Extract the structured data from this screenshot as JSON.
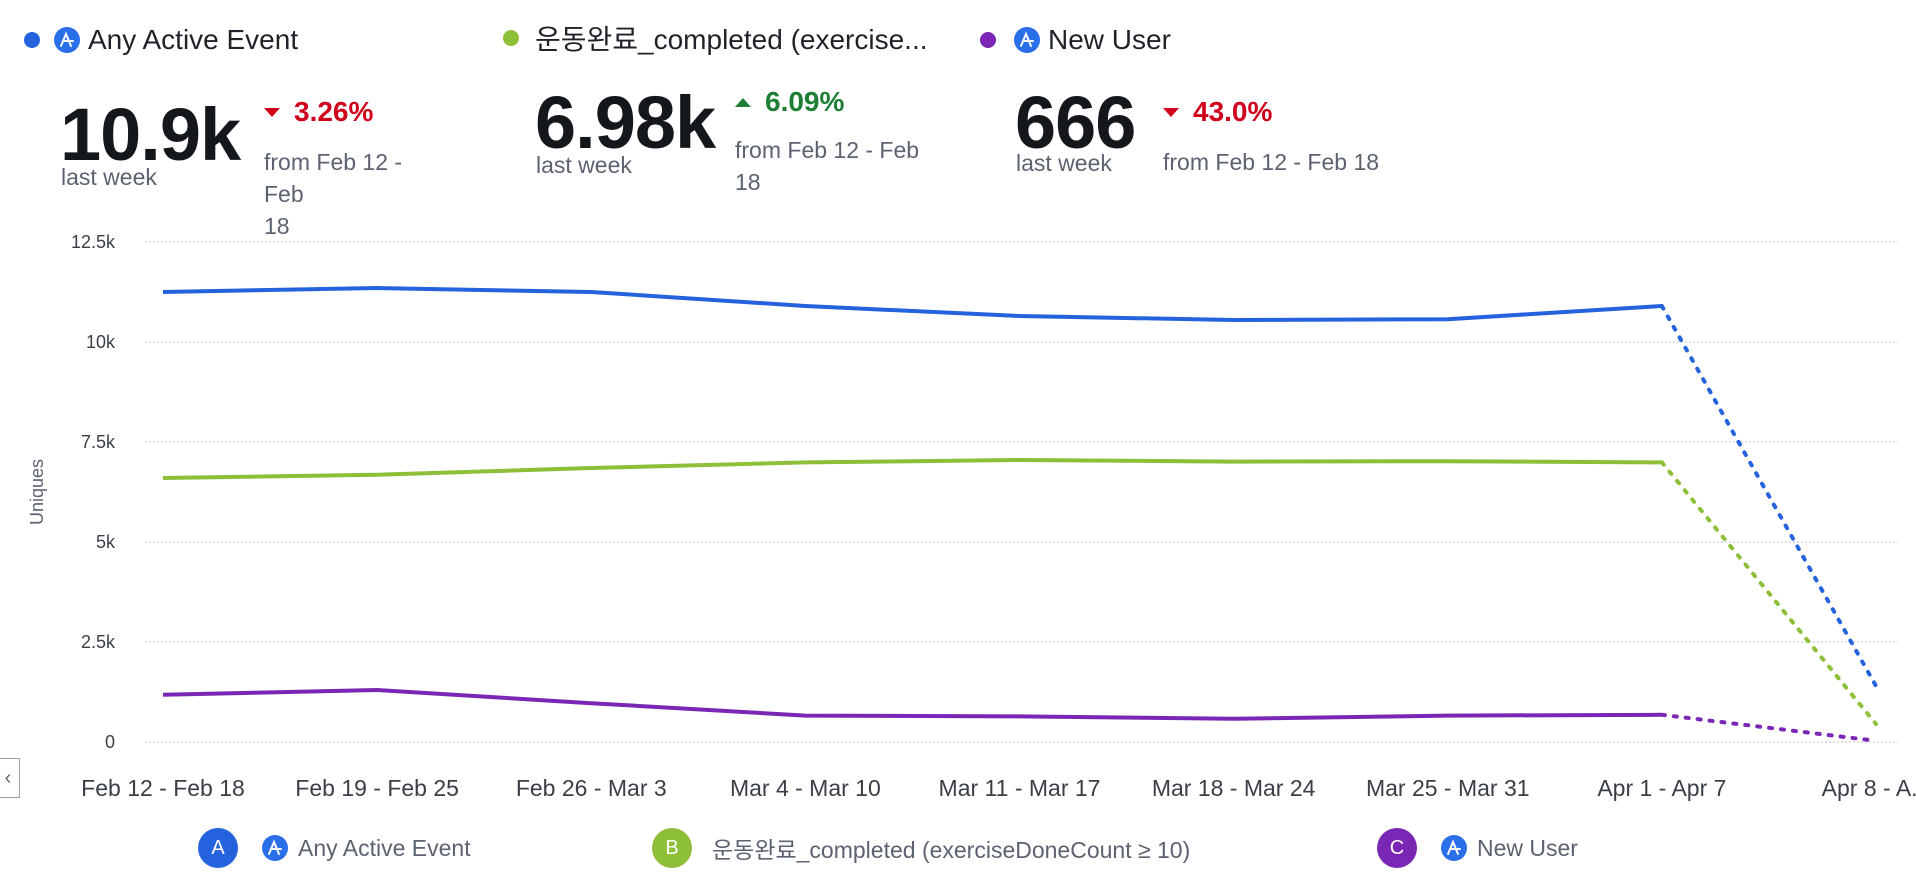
{
  "metrics": [
    {
      "name": "Any Active Event",
      "color": "#2563de",
      "show_icon": true,
      "value": "10.9k",
      "period": "last week",
      "delta": "3.26%",
      "direction": "down",
      "from_line1": "from Feb 12 - Feb",
      "from_line2": "18"
    },
    {
      "name": "운동완료_completed (exercise...",
      "color": "#8dbf38",
      "show_icon": false,
      "value": "6.98k",
      "period": "last week",
      "delta": "6.09%",
      "direction": "up",
      "from_line1": "from Feb 12 - Feb",
      "from_line2": "18"
    },
    {
      "name": "New User",
      "color": "#7b27b5",
      "show_icon": true,
      "value": "666",
      "period": "last week",
      "delta": "43.0%",
      "direction": "down",
      "from_line1": "from Feb 12 - Feb 18",
      "from_line2": ""
    }
  ],
  "legend": [
    {
      "badge": "A",
      "label": "Any Active Event",
      "color": "#2563de",
      "show_icon": true
    },
    {
      "badge": "B",
      "label": "운동완료_completed (exerciseDoneCount ≥ 10)",
      "color": "#8dbf38",
      "show_icon": false
    },
    {
      "badge": "C",
      "label": "New User",
      "color": "#7b27b5",
      "show_icon": true
    }
  ],
  "colors": {
    "down": "#d0021b",
    "up": "#1e7e34",
    "icon_bg": "#2a6ee8",
    "grid": "#c8ccd2"
  },
  "collapse_icon": "chevron-left-icon",
  "chart_data": {
    "type": "line",
    "ylabel": "Uniques",
    "ylim": [
      0,
      12500
    ],
    "yticks": [
      0,
      2500,
      5000,
      7500,
      10000,
      12500
    ],
    "ytick_labels": [
      "0",
      "2.5k",
      "5k",
      "7.5k",
      "10k",
      "12.5k"
    ],
    "categories": [
      "Feb 12 - Feb 18",
      "Feb 19 - Feb 25",
      "Feb 26 - Mar 3",
      "Mar 4 - Mar 10",
      "Mar 11 - Mar 17",
      "Mar 18 - Mar 24",
      "Mar 25 - Mar 31",
      "Apr 1 - Apr 7",
      "Apr 8 - A..."
    ],
    "incomplete_last_point": true,
    "grid": true,
    "series": [
      {
        "name": "Any Active Event",
        "color": "#2563de",
        "values": [
          11250,
          11350,
          11250,
          10900,
          10650,
          10550,
          10570,
          10900,
          1400
        ]
      },
      {
        "name": "운동완료_completed (exerciseDoneCount ≥ 10)",
        "color": "#8dbf38",
        "values": [
          6600,
          6680,
          6850,
          6990,
          7050,
          7010,
          7020,
          6990,
          450
        ]
      },
      {
        "name": "New User",
        "color": "#7b27b5",
        "values": [
          1180,
          1300,
          970,
          660,
          640,
          580,
          660,
          680,
          30
        ]
      }
    ]
  }
}
